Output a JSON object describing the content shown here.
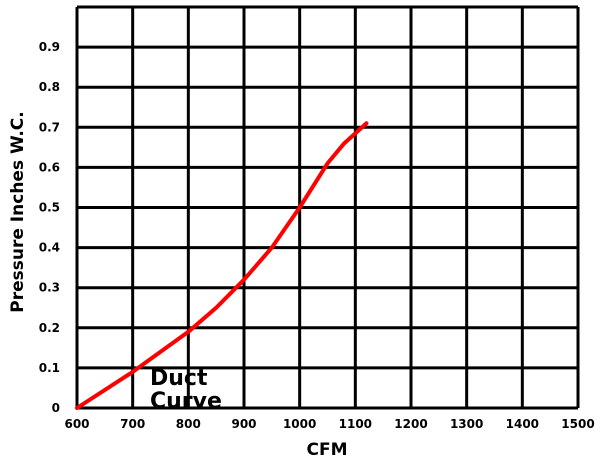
{
  "chart_data": {
    "type": "line",
    "title": "",
    "xlabel": "CFM",
    "ylabel": "Pressure Inches W.C.",
    "xlim": [
      600,
      1500
    ],
    "ylim": [
      0,
      1.0
    ],
    "x_ticks": [
      600,
      700,
      800,
      900,
      1000,
      1100,
      1200,
      1300,
      1400,
      1500
    ],
    "x_tick_labels": [
      "600",
      "700",
      "800",
      "900",
      "1000",
      "1100",
      "1200",
      "1300",
      "1400",
      "1500"
    ],
    "y_ticks": [
      0,
      0.1,
      0.2,
      0.3,
      0.4,
      0.5,
      0.6,
      0.7,
      0.8,
      0.9
    ],
    "y_tick_labels": [
      "0",
      "0.1",
      "0.2",
      "0.3",
      "0.4",
      "0.5",
      "0.6",
      "0.7",
      "0.8",
      "0.9"
    ],
    "grid": true,
    "annotation": [
      "Duct",
      "Curve"
    ],
    "series": [
      {
        "color": "#ff0000",
        "x": [
          600,
          700,
          800,
          850,
          900,
          950,
          1000,
          1050,
          1080,
          1120
        ],
        "y": [
          0,
          0.09,
          0.19,
          0.25,
          0.32,
          0.4,
          0.5,
          0.61,
          0.66,
          0.71
        ]
      }
    ]
  }
}
